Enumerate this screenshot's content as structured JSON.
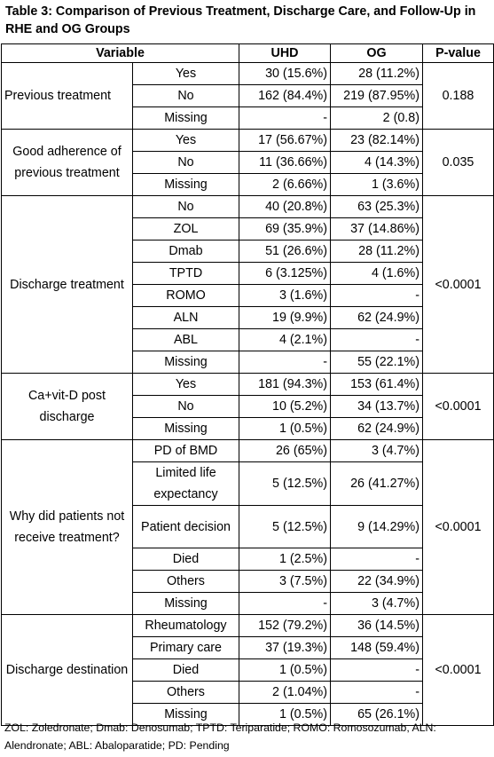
{
  "caption": "Table 3: Comparison of Previous Treatment, Discharge Care, and Follow-Up in RHE and OG Groups",
  "headers": {
    "variable": "Variable",
    "uhd": "UHD",
    "og": "OG",
    "pvalue": "P-value"
  },
  "groups": [
    {
      "label": "Previous treatment",
      "pvalue": "0.188",
      "rows": [
        {
          "sub": "Yes",
          "uhd": "30 (15.6%)",
          "og": "28 (11.2%)"
        },
        {
          "sub": "No",
          "uhd": "162 (84.4%)",
          "og": "219 (87.95%)"
        },
        {
          "sub": "Missing",
          "uhd": "-",
          "og": "2 (0.8)"
        }
      ]
    },
    {
      "label": "Good adherence of previous treatment",
      "pvalue": "0.035",
      "rows": [
        {
          "sub": "Yes",
          "uhd": "17 (56.67%)",
          "og": "23 (82.14%)"
        },
        {
          "sub": "No",
          "uhd": "11 (36.66%)",
          "og": "4 (14.3%)"
        },
        {
          "sub": "Missing",
          "uhd": "2 (6.66%)",
          "og": "1 (3.6%)"
        }
      ]
    },
    {
      "label": "Discharge treatment",
      "pvalue": "<0.0001",
      "rows": [
        {
          "sub": "No",
          "uhd": "40 (20.8%)",
          "og": "63 (25.3%)"
        },
        {
          "sub": "ZOL",
          "uhd": "69 (35.9%)",
          "og": "37 (14.86%)"
        },
        {
          "sub": "Dmab",
          "uhd": "51 (26.6%)",
          "og": "28 (11.2%)"
        },
        {
          "sub": "TPTD",
          "uhd": "6 (3.125%)",
          "og": "4 (1.6%)"
        },
        {
          "sub": "ROMO",
          "uhd": "3 (1.6%)",
          "og": "-"
        },
        {
          "sub": "ALN",
          "uhd": "19 (9.9%)",
          "og": "62 (24.9%)"
        },
        {
          "sub": "ABL",
          "uhd": "4 (2.1%)",
          "og": "-"
        },
        {
          "sub": "Missing",
          "uhd": "-",
          "og": "55 (22.1%)"
        }
      ]
    },
    {
      "label": "Ca+vit-D post discharge",
      "pvalue": "<0.0001",
      "rows": [
        {
          "sub": "Yes",
          "uhd": "181 (94.3%)",
          "og": "153 (61.4%)"
        },
        {
          "sub": "No",
          "uhd": "10 (5.2%)",
          "og": "34 (13.7%)"
        },
        {
          "sub": "Missing",
          "uhd": "1 (0.5%)",
          "og": "62 (24.9%)"
        }
      ]
    },
    {
      "label": "Why did patients not receive treatment?",
      "pvalue": "<0.0001",
      "rows": [
        {
          "sub": "PD of BMD",
          "uhd": "26 (65%)",
          "og": "3 (4.7%)"
        },
        {
          "sub": "Limited life expectancy",
          "uhd": "5 (12.5%)",
          "og": "26 (41.27%)"
        },
        {
          "sub": "Patient decision",
          "uhd": "5 (12.5%)",
          "og": "9 (14.29%)"
        },
        {
          "sub": "Died",
          "uhd": "1 (2.5%)",
          "og": "-"
        },
        {
          "sub": "Others",
          "uhd": "3 (7.5%)",
          "og": "22 (34.9%)"
        },
        {
          "sub": "Missing",
          "uhd": "-",
          "og": "3 (4.7%)"
        }
      ]
    },
    {
      "label": "Discharge destination",
      "pvalue": "<0.0001",
      "rows": [
        {
          "sub": "Rheumatology",
          "uhd": "152 (79.2%)",
          "og": "36 (14.5%)"
        },
        {
          "sub": "Primary care",
          "uhd": "37 (19.3%)",
          "og": "148 (59.4%)"
        },
        {
          "sub": "Died",
          "uhd": "1 (0.5%)",
          "og": "-"
        },
        {
          "sub": "Others",
          "uhd": "2 (1.04%)",
          "og": "-"
        },
        {
          "sub": "Missing",
          "uhd": "1 (0.5%)",
          "og": "65 (26.1%)"
        }
      ]
    }
  ],
  "footnote": "ZOL: Zoledronate; Dmab: Denosumab; TPTD: Teriparatide; ROMO: Romosozumab, ALN: Alendronate; ABL: Abaloparatide; PD: Pending"
}
